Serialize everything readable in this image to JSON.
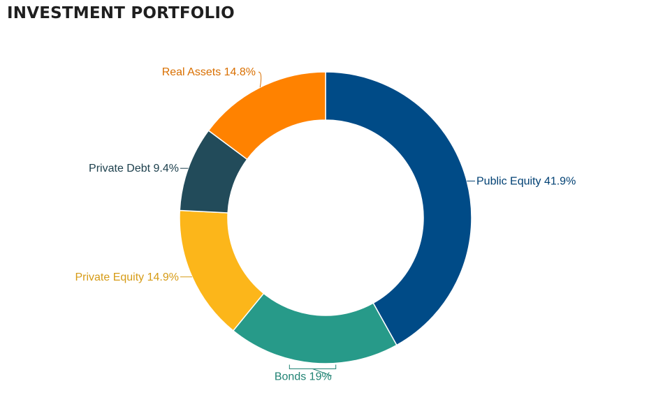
{
  "title": "INVESTMENT PORTFOLIO",
  "chart_data": {
    "type": "pie",
    "donut": true,
    "title": "INVESTMENT PORTFOLIO",
    "slices": [
      {
        "name": "Public Equity",
        "value": 41.9,
        "label": "Public Equity 41.9%",
        "color": "#004b87"
      },
      {
        "name": "Bonds",
        "value": 19,
        "label": "Bonds 19%",
        "color": "#279a89"
      },
      {
        "name": "Private Equity",
        "value": 14.9,
        "label": "Private Equity 14.9%",
        "color": "#fcb61a"
      },
      {
        "name": "Private Debt",
        "value": 9.4,
        "label": "Private Debt 9.4%",
        "color": "#224b5a"
      },
      {
        "name": "Real Assets",
        "value": 14.8,
        "label": "Real Assets 14.8%",
        "color": "#ff8200"
      }
    ],
    "start": "12 o'clock",
    "direction": "clockwise",
    "legend": "none"
  }
}
